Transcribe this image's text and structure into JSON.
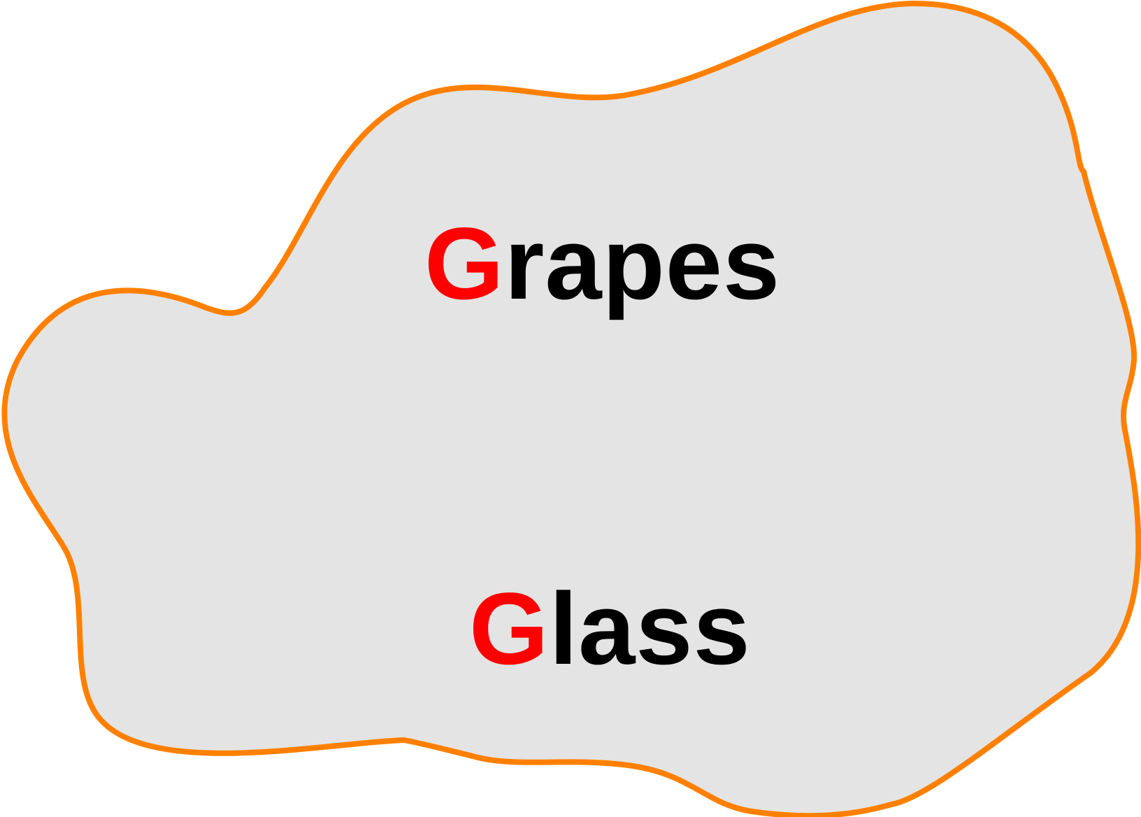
{
  "shape": {
    "fill": "#e4e4e4",
    "stroke": "#ff8000"
  },
  "words": [
    {
      "initial": "G",
      "rest": "rapes"
    },
    {
      "initial": "G",
      "rest": "lass"
    }
  ],
  "colors": {
    "initial_letter": "#ff0000",
    "text": "#000000"
  }
}
